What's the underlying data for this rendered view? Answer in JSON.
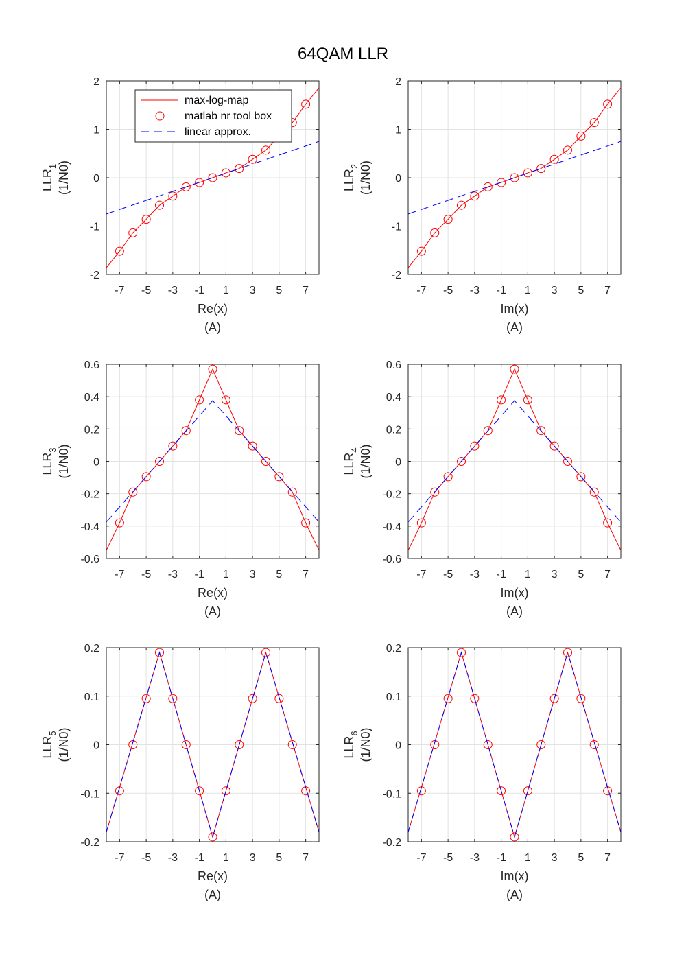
{
  "figure": {
    "title": "64QAM LLR"
  },
  "chart_data": [
    {
      "type": "line",
      "ylabel_main": "LLR",
      "ylabel_sub": "1",
      "ylabel_unit": "(1/N0)",
      "xlabel": "Re(x)",
      "xunit": "(A)",
      "xlim": [
        -8,
        8
      ],
      "ylim": [
        -2,
        2
      ],
      "xticks": [
        -7,
        -5,
        -3,
        -1,
        1,
        3,
        5,
        7
      ],
      "yticks": [
        -2,
        -1,
        0,
        1,
        2
      ],
      "yticklabels": [
        "-2",
        "-1",
        "0",
        "1",
        "2"
      ],
      "legend": {
        "position": "top-left",
        "entries": [
          "max-log-map",
          "matlab nr tool box",
          "linear approx."
        ]
      },
      "series": [
        {
          "name": "max-log-map",
          "style": "solid",
          "color": "#ff0000",
          "x": [
            -8,
            -7,
            -6,
            -5,
            -4,
            -3,
            -2,
            -1,
            0,
            1,
            2,
            3,
            4,
            5,
            6,
            7,
            8
          ],
          "y": [
            -1.86,
            -1.52,
            -1.14,
            -0.86,
            -0.57,
            -0.38,
            -0.19,
            -0.1,
            0,
            0.1,
            0.19,
            0.38,
            0.57,
            0.86,
            1.14,
            1.52,
            1.86
          ]
        },
        {
          "name": "matlab nr tool box",
          "style": "marker",
          "color": "#ff0000",
          "x": [
            -7,
            -6,
            -5,
            -4,
            -3,
            -2,
            -1,
            0,
            1,
            2,
            3,
            4,
            5,
            6,
            7
          ],
          "y": [
            -1.52,
            -1.14,
            -0.86,
            -0.57,
            -0.38,
            -0.19,
            -0.1,
            0,
            0.1,
            0.19,
            0.38,
            0.57,
            0.86,
            1.14,
            1.52
          ]
        },
        {
          "name": "linear approx.",
          "style": "dashed",
          "color": "#0000ff",
          "x": [
            -8,
            8
          ],
          "y": [
            -0.75,
            0.75
          ]
        }
      ]
    },
    {
      "type": "line",
      "ylabel_main": "LLR",
      "ylabel_sub": "2",
      "ylabel_unit": "(1/N0)",
      "xlabel": "Im(x)",
      "xunit": "(A)",
      "xlim": [
        -8,
        8
      ],
      "ylim": [
        -2,
        2
      ],
      "xticks": [
        -7,
        -5,
        -3,
        -1,
        1,
        3,
        5,
        7
      ],
      "yticks": [
        -2,
        -1,
        0,
        1,
        2
      ],
      "yticklabels": [
        "-2",
        "-1",
        "0",
        "1",
        "2"
      ],
      "series": [
        {
          "style": "solid",
          "color": "#ff0000",
          "x": [
            -8,
            -7,
            -6,
            -5,
            -4,
            -3,
            -2,
            -1,
            0,
            1,
            2,
            3,
            4,
            5,
            6,
            7,
            8
          ],
          "y": [
            -1.86,
            -1.52,
            -1.14,
            -0.86,
            -0.57,
            -0.38,
            -0.19,
            -0.1,
            0,
            0.1,
            0.19,
            0.38,
            0.57,
            0.86,
            1.14,
            1.52,
            1.86
          ]
        },
        {
          "style": "marker",
          "color": "#ff0000",
          "x": [
            -7,
            -6,
            -5,
            -4,
            -3,
            -2,
            -1,
            0,
            1,
            2,
            3,
            4,
            5,
            6,
            7
          ],
          "y": [
            -1.52,
            -1.14,
            -0.86,
            -0.57,
            -0.38,
            -0.19,
            -0.1,
            0,
            0.1,
            0.19,
            0.38,
            0.57,
            0.86,
            1.14,
            1.52
          ]
        },
        {
          "style": "dashed",
          "color": "#0000ff",
          "x": [
            -8,
            8
          ],
          "y": [
            -0.75,
            0.75
          ]
        }
      ]
    },
    {
      "type": "line",
      "ylabel_main": "LLR",
      "ylabel_sub": "3",
      "ylabel_unit": "(1/N0)",
      "xlabel": "Re(x)",
      "xunit": "(A)",
      "xlim": [
        -8,
        8
      ],
      "ylim": [
        -0.6,
        0.6
      ],
      "xticks": [
        -7,
        -5,
        -3,
        -1,
        1,
        3,
        5,
        7
      ],
      "yticks": [
        -0.6,
        -0.4,
        -0.2,
        0,
        0.2,
        0.4,
        0.6
      ],
      "yticklabels": [
        "-0.6",
        "-0.4",
        "-0.2",
        "0",
        "0.2",
        "0.4",
        "0.6"
      ],
      "series": [
        {
          "style": "solid",
          "color": "#ff0000",
          "x": [
            -8,
            -7,
            -6,
            -5,
            -4,
            -3,
            -2,
            -1,
            0,
            1,
            2,
            3,
            4,
            5,
            6,
            7,
            8
          ],
          "y": [
            -0.55,
            -0.38,
            -0.19,
            -0.095,
            0,
            0.095,
            0.19,
            0.38,
            0.57,
            0.38,
            0.19,
            0.095,
            0,
            -0.095,
            -0.19,
            -0.38,
            -0.55
          ]
        },
        {
          "style": "marker",
          "color": "#ff0000",
          "x": [
            -7,
            -6,
            -5,
            -4,
            -3,
            -2,
            -1,
            0,
            1,
            2,
            3,
            4,
            5,
            6,
            7
          ],
          "y": [
            -0.38,
            -0.19,
            -0.095,
            0,
            0.095,
            0.19,
            0.38,
            0.57,
            0.38,
            0.19,
            0.095,
            0,
            -0.095,
            -0.19,
            -0.38
          ]
        },
        {
          "style": "dashed",
          "color": "#0000ff",
          "x": [
            -8,
            0,
            8
          ],
          "y": [
            -0.375,
            0.375,
            -0.375
          ]
        }
      ]
    },
    {
      "type": "line",
      "ylabel_main": "LLR",
      "ylabel_sub": "4",
      "ylabel_unit": "(1/N0)",
      "xlabel": "Im(x)",
      "xunit": "(A)",
      "xlim": [
        -8,
        8
      ],
      "ylim": [
        -0.6,
        0.6
      ],
      "xticks": [
        -7,
        -5,
        -3,
        -1,
        1,
        3,
        5,
        7
      ],
      "yticks": [
        -0.6,
        -0.4,
        -0.2,
        0,
        0.2,
        0.4,
        0.6
      ],
      "yticklabels": [
        "-0.6",
        "-0.4",
        "-0.2",
        "0",
        "0.2",
        "0.4",
        "0.6"
      ],
      "series": [
        {
          "style": "solid",
          "color": "#ff0000",
          "x": [
            -8,
            -7,
            -6,
            -5,
            -4,
            -3,
            -2,
            -1,
            0,
            1,
            2,
            3,
            4,
            5,
            6,
            7,
            8
          ],
          "y": [
            -0.55,
            -0.38,
            -0.19,
            -0.095,
            0,
            0.095,
            0.19,
            0.38,
            0.57,
            0.38,
            0.19,
            0.095,
            0,
            -0.095,
            -0.19,
            -0.38,
            -0.55
          ]
        },
        {
          "style": "marker",
          "color": "#ff0000",
          "x": [
            -7,
            -6,
            -5,
            -4,
            -3,
            -2,
            -1,
            0,
            1,
            2,
            3,
            4,
            5,
            6,
            7
          ],
          "y": [
            -0.38,
            -0.19,
            -0.095,
            0,
            0.095,
            0.19,
            0.38,
            0.57,
            0.38,
            0.19,
            0.095,
            0,
            -0.095,
            -0.19,
            -0.38
          ]
        },
        {
          "style": "dashed",
          "color": "#0000ff",
          "x": [
            -8,
            0,
            8
          ],
          "y": [
            -0.375,
            0.375,
            -0.375
          ]
        }
      ]
    },
    {
      "type": "line",
      "ylabel_main": "LLR",
      "ylabel_sub": "5",
      "ylabel_unit": "(1/N0)",
      "xlabel": "Re(x)",
      "xunit": "(A)",
      "xlim": [
        -8,
        8
      ],
      "ylim": [
        -0.2,
        0.2
      ],
      "xticks": [
        -7,
        -5,
        -3,
        -1,
        1,
        3,
        5,
        7
      ],
      "yticks": [
        -0.2,
        -0.1,
        0,
        0.1,
        0.2
      ],
      "yticklabels": [
        "-0.2",
        "-0.1",
        "0",
        "0.1",
        "0.2"
      ],
      "series": [
        {
          "style": "solid",
          "color": "#ff0000",
          "x": [
            -8,
            -4,
            0,
            4,
            8
          ],
          "y": [
            -0.18,
            0.19,
            -0.19,
            0.19,
            -0.18
          ]
        },
        {
          "style": "marker",
          "color": "#ff0000",
          "x": [
            -7,
            -6,
            -5,
            -4,
            -3,
            -2,
            -1,
            0,
            1,
            2,
            3,
            4,
            5,
            6,
            7
          ],
          "y": [
            -0.095,
            0,
            0.095,
            0.19,
            0.095,
            0,
            -0.095,
            -0.19,
            -0.095,
            0,
            0.095,
            0.19,
            0.095,
            0,
            -0.095
          ]
        },
        {
          "style": "dashed",
          "color": "#0000ff",
          "x": [
            -8,
            -4,
            0,
            4,
            8
          ],
          "y": [
            -0.18,
            0.19,
            -0.19,
            0.19,
            -0.18
          ]
        }
      ]
    },
    {
      "type": "line",
      "ylabel_main": "LLR",
      "ylabel_sub": "6",
      "ylabel_unit": "(1/N0)",
      "xlabel": "Im(x)",
      "xunit": "(A)",
      "xlim": [
        -8,
        8
      ],
      "ylim": [
        -0.2,
        0.2
      ],
      "xticks": [
        -7,
        -5,
        -3,
        -1,
        1,
        3,
        5,
        7
      ],
      "yticks": [
        -0.2,
        -0.1,
        0,
        0.1,
        0.2
      ],
      "yticklabels": [
        "-0.2",
        "-0.1",
        "0",
        "0.1",
        "0.2"
      ],
      "series": [
        {
          "style": "solid",
          "color": "#ff0000",
          "x": [
            -8,
            -4,
            0,
            4,
            8
          ],
          "y": [
            -0.18,
            0.19,
            -0.19,
            0.19,
            -0.18
          ]
        },
        {
          "style": "marker",
          "color": "#ff0000",
          "x": [
            -7,
            -6,
            -5,
            -4,
            -3,
            -2,
            -1,
            0,
            1,
            2,
            3,
            4,
            5,
            6,
            7
          ],
          "y": [
            -0.095,
            0,
            0.095,
            0.19,
            0.095,
            0,
            -0.095,
            -0.19,
            -0.095,
            0,
            0.095,
            0.19,
            0.095,
            0,
            -0.095
          ]
        },
        {
          "style": "dashed",
          "color": "#0000ff",
          "x": [
            -8,
            -4,
            0,
            4,
            8
          ],
          "y": [
            -0.18,
            0.19,
            -0.19,
            0.19,
            -0.18
          ]
        }
      ]
    }
  ]
}
